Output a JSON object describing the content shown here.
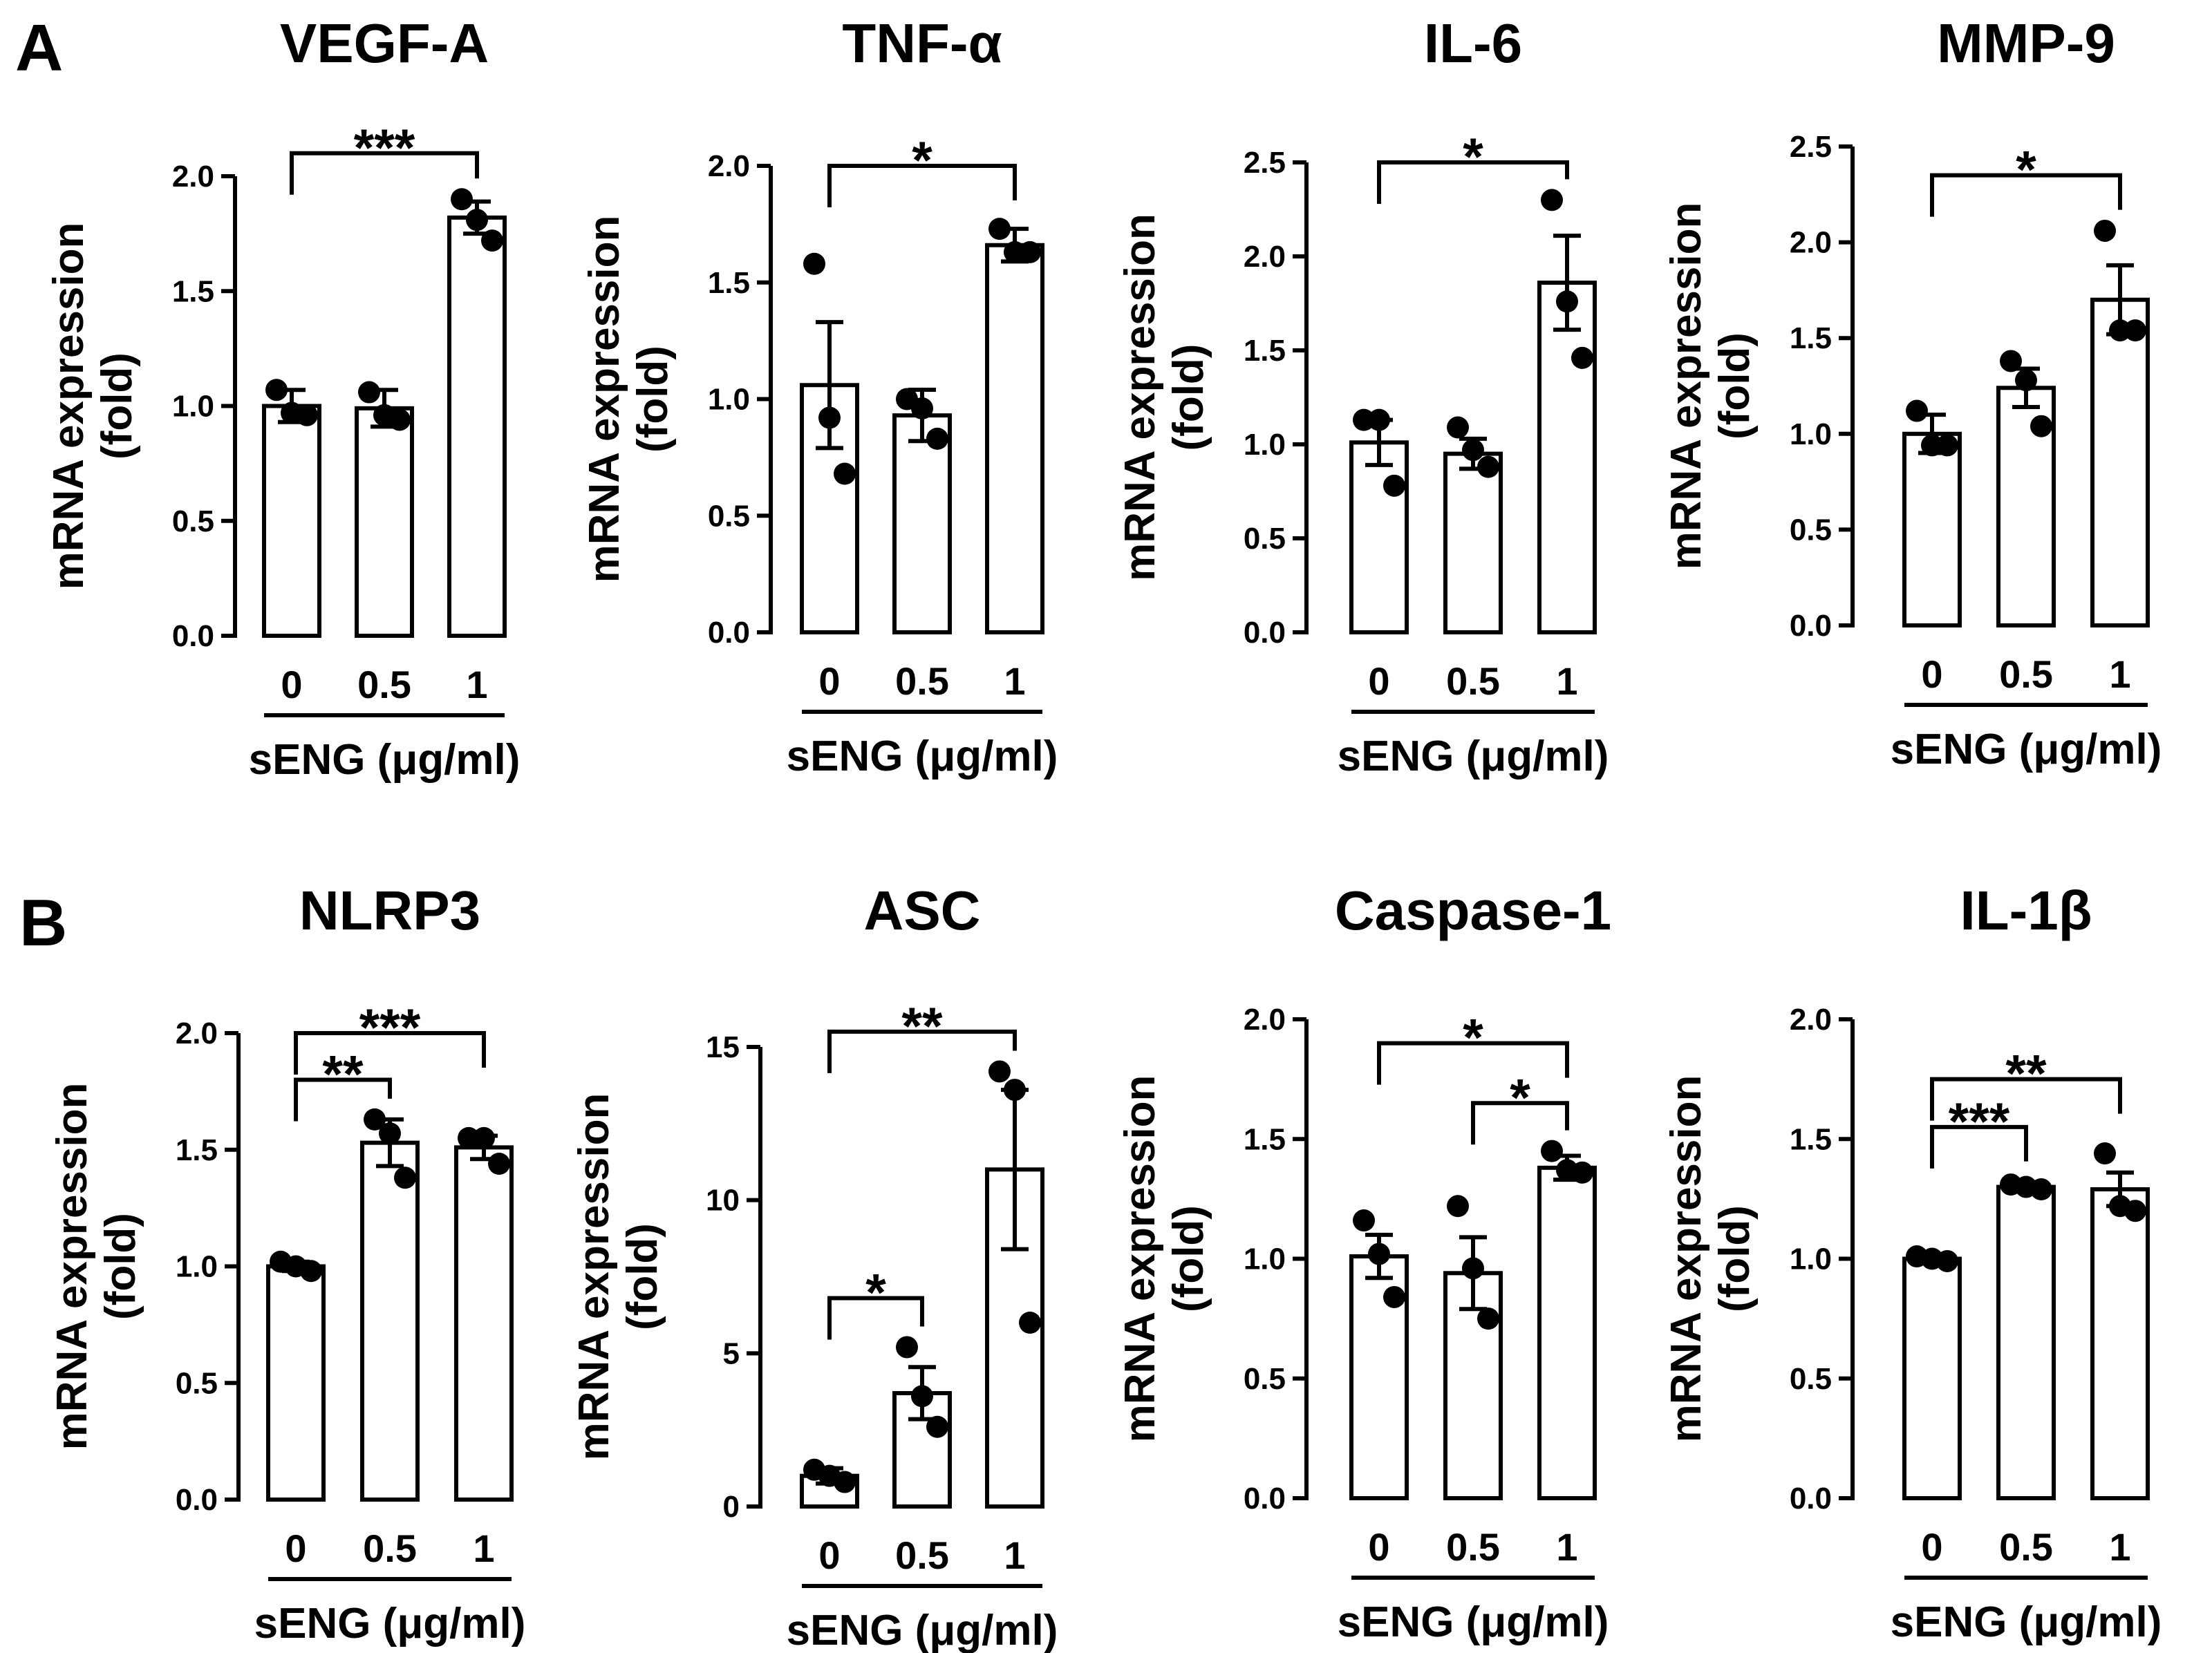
{
  "figure": {
    "panels": [
      {
        "letter": "A"
      },
      {
        "letter": "B"
      }
    ]
  },
  "chart_data": [
    {
      "panel": "A",
      "type": "bar",
      "title": "VEGF-A",
      "categories": [
        "0",
        "0.5",
        "1"
      ],
      "values": [
        1.0,
        0.99,
        1.82
      ],
      "errors": [
        0.07,
        0.08,
        0.07
      ],
      "points": [
        [
          1.07,
          0.97,
          0.96
        ],
        [
          1.06,
          0.96,
          0.94
        ],
        [
          1.9,
          1.81,
          1.72
        ]
      ],
      "ylim": [
        0,
        2.0
      ],
      "yticks": [
        "0.0",
        "0.5",
        "1.0",
        "1.5",
        "2.0"
      ],
      "ylabel": "mRNA expression",
      "ylabel2": "(fold)",
      "xlabel": "sENG (μg/ml)",
      "significance": [
        {
          "from": 0,
          "to": 2,
          "label": "***",
          "y": 2.1
        }
      ]
    },
    {
      "panel": "A",
      "type": "bar",
      "title": "TNF-α",
      "categories": [
        "0",
        "0.5",
        "1"
      ],
      "values": [
        1.06,
        0.93,
        1.66
      ],
      "errors": [
        0.27,
        0.11,
        0.07
      ],
      "points": [
        [
          1.58,
          0.92,
          0.68
        ],
        [
          1.0,
          0.96,
          0.83
        ],
        [
          1.73,
          1.63,
          1.63
        ]
      ],
      "ylim": [
        0,
        2.0
      ],
      "yticks": [
        "0.0",
        "0.5",
        "1.0",
        "1.5",
        "2.0"
      ],
      "ylabel": "mRNA expression",
      "ylabel2": "(fold)",
      "xlabel": "sENG (μg/ml)",
      "significance": [
        {
          "from": 0,
          "to": 2,
          "label": "*",
          "y": 2.0
        }
      ]
    },
    {
      "panel": "A",
      "type": "bar",
      "title": "IL-6",
      "categories": [
        "0",
        "0.5",
        "1"
      ],
      "values": [
        1.01,
        0.95,
        1.86
      ],
      "errors": [
        0.12,
        0.08,
        0.25
      ],
      "points": [
        [
          1.13,
          1.13,
          0.78
        ],
        [
          1.09,
          0.97,
          0.88
        ],
        [
          2.3,
          1.76,
          1.46
        ]
      ],
      "ylim": [
        0,
        2.5
      ],
      "yticks": [
        "0.0",
        "0.5",
        "1.0",
        "1.5",
        "2.0",
        "2.5"
      ],
      "ylabel": "mRNA expression",
      "ylabel2": "(fold)",
      "xlabel": "sENG (μg/ml)",
      "significance": [
        {
          "from": 0,
          "to": 2,
          "label": "*",
          "y": 2.5
        }
      ]
    },
    {
      "panel": "A",
      "type": "bar",
      "title": "MMP-9",
      "categories": [
        "0",
        "0.5",
        "1"
      ],
      "values": [
        1.0,
        1.24,
        1.7
      ],
      "errors": [
        0.1,
        0.1,
        0.18
      ],
      "points": [
        [
          1.12,
          0.94,
          0.94
        ],
        [
          1.38,
          1.28,
          1.04
        ],
        [
          2.06,
          1.54,
          1.54
        ]
      ],
      "ylim": [
        0,
        2.5
      ],
      "yticks": [
        "0.0",
        "0.5",
        "1.0",
        "1.5",
        "2.0",
        "2.5"
      ],
      "ylabel": "mRNA expression",
      "ylabel2": "(fold)",
      "xlabel": "sENG (μg/ml)",
      "significance": [
        {
          "from": 0,
          "to": 2,
          "label": "*",
          "y": 2.35
        }
      ]
    },
    {
      "panel": "B",
      "type": "bar",
      "title": "NLRP3",
      "categories": [
        "0",
        "0.5",
        "1"
      ],
      "values": [
        1.0,
        1.53,
        1.51
      ],
      "errors": [
        0.02,
        0.1,
        0.05
      ],
      "points": [
        [
          1.02,
          1.0,
          0.98
        ],
        [
          1.63,
          1.57,
          1.38
        ],
        [
          1.55,
          1.55,
          1.44
        ]
      ],
      "ylim": [
        0,
        2.0
      ],
      "yticks": [
        "0.0",
        "0.5",
        "1.0",
        "1.5",
        "2.0"
      ],
      "ylabel": "mRNA expression",
      "ylabel2": "(fold)",
      "xlabel": "sENG (μg/ml)",
      "significance": [
        {
          "from": 0,
          "to": 1,
          "label": "**",
          "y": 1.8
        },
        {
          "from": 0,
          "to": 2,
          "label": "***",
          "y": 2.0
        }
      ]
    },
    {
      "panel": "B",
      "type": "bar",
      "title": "ASC",
      "categories": [
        "0",
        "0.5",
        "1"
      ],
      "values": [
        1.0,
        3.7,
        11.0
      ],
      "errors": [
        0.25,
        0.85,
        2.6
      ],
      "points": [
        [
          1.2,
          1.0,
          0.8
        ],
        [
          5.2,
          3.6,
          2.6
        ],
        [
          14.2,
          13.6,
          6.0
        ]
      ],
      "ylim": [
        0,
        15
      ],
      "yticks": [
        "0",
        "5",
        "10",
        "15"
      ],
      "ylabel": "mRNA expression",
      "ylabel2": "(fold)",
      "xlabel": "sENG (μg/ml)",
      "significance": [
        {
          "from": 0,
          "to": 1,
          "label": "*",
          "y": 6.8
        },
        {
          "from": 0,
          "to": 2,
          "label": "**",
          "y": 15.5
        }
      ]
    },
    {
      "panel": "B",
      "type": "bar",
      "title": "Caspase-1",
      "categories": [
        "0",
        "0.5",
        "1"
      ],
      "values": [
        1.01,
        0.94,
        1.38
      ],
      "errors": [
        0.09,
        0.15,
        0.05
      ],
      "points": [
        [
          1.16,
          1.02,
          0.84
        ],
        [
          1.22,
          0.96,
          0.75
        ],
        [
          1.45,
          1.37,
          1.36
        ]
      ],
      "ylim": [
        0,
        2.0
      ],
      "yticks": [
        "0.0",
        "0.5",
        "1.0",
        "1.5",
        "2.0"
      ],
      "ylabel": "mRNA expression",
      "ylabel2": "(fold)",
      "xlabel": "sENG (μg/ml)",
      "significance": [
        {
          "from": 0,
          "to": 2,
          "label": "*",
          "y": 1.9
        },
        {
          "from": 1,
          "to": 2,
          "label": "*",
          "y": 1.65
        }
      ]
    },
    {
      "panel": "B",
      "type": "bar",
      "title": "IL-1β",
      "categories": [
        "0",
        "0.5",
        "1"
      ],
      "values": [
        1.0,
        1.3,
        1.29
      ],
      "errors": [
        0.01,
        0.02,
        0.07
      ],
      "points": [
        [
          1.01,
          1.0,
          0.99
        ],
        [
          1.31,
          1.3,
          1.29
        ],
        [
          1.44,
          1.22,
          1.2
        ]
      ],
      "ylim": [
        0,
        2.0
      ],
      "yticks": [
        "0.0",
        "0.5",
        "1.0",
        "1.5",
        "2.0"
      ],
      "ylabel": "mRNA expression",
      "ylabel2": "(fold)",
      "xlabel": "sENG (μg/ml)",
      "significance": [
        {
          "from": 0,
          "to": 1,
          "label": "***",
          "y": 1.55
        },
        {
          "from": 0,
          "to": 2,
          "label": "**",
          "y": 1.75
        }
      ]
    }
  ]
}
